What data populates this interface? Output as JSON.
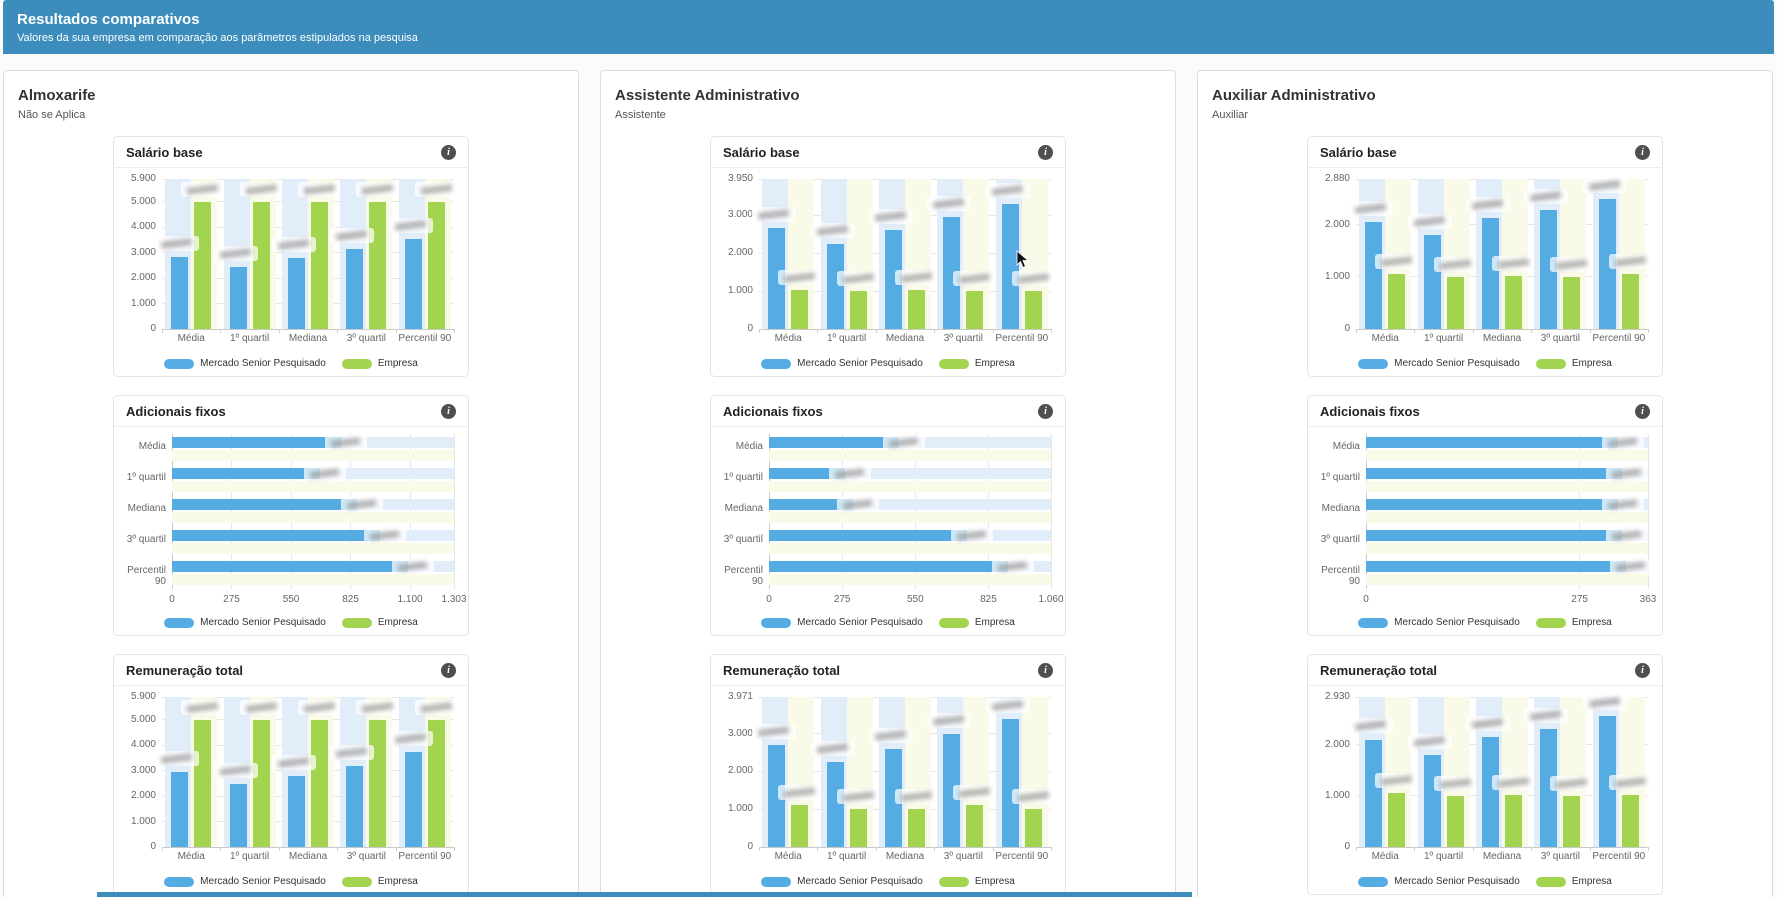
{
  "header": {
    "title": "Resultados comparativos",
    "subtitle": "Valores da sua empresa em comparação aos parâmetros estipulados na pesquisa"
  },
  "legend_labels": {
    "market": "Mercado Senior Pesquisado",
    "company": "Empresa"
  },
  "icons": {
    "info": "i",
    "cursor": "mouse-pointer"
  },
  "colors": {
    "header_bg": "#3c8dbc",
    "market": "#55ace3",
    "company": "#a2d450",
    "market_band": "#e1eefa",
    "company_band": "#f9fae7",
    "grid": "#e6e6e6",
    "tick_text": "#666666",
    "legend_text": "#333333"
  },
  "categories": [
    "Média",
    "1º quartil",
    "Mediana",
    "3º quartil",
    "Percentil 90"
  ],
  "panels": [
    {
      "title": "Almoxarife",
      "subtitle": "Não se Aplica",
      "chart_refs": [
        0,
        1,
        2
      ]
    },
    {
      "title": "Assistente Administrativo",
      "subtitle": "Assistente",
      "chart_refs": [
        3,
        4,
        5
      ]
    },
    {
      "title": "Auxiliar Administrativo",
      "subtitle": "Auxiliar",
      "chart_refs": [
        6,
        7,
        8
      ]
    }
  ],
  "note": "Numeric data labels on all bars are blurred/redacted in the screenshot; series values are estimated from bar sizes against the axis scales.",
  "chart_data": [
    {
      "panel": "Almoxarife",
      "title": "Salário base",
      "type": "bar",
      "orientation": "vertical",
      "categories": [
        "Média",
        "1º quartil",
        "Mediana",
        "3º quartil",
        "Percentil 90"
      ],
      "series": [
        {
          "name": "Mercado Senior Pesquisado",
          "values": [
            2830,
            2450,
            2780,
            3160,
            3550
          ]
        },
        {
          "name": "Empresa",
          "values": [
            5000,
            5000,
            5000,
            5000,
            5000
          ]
        }
      ],
      "ylim": [
        0,
        5900
      ],
      "yticks": [
        0,
        1000,
        2000,
        3000,
        4000,
        5000,
        5900
      ],
      "data_labels": "blurred"
    },
    {
      "panel": "Almoxarife",
      "title": "Adicionais fixos",
      "type": "bar",
      "orientation": "horizontal",
      "categories": [
        "Média",
        "1º quartil",
        "Mediana",
        "3º quartil",
        "Percentil 90"
      ],
      "series": [
        {
          "name": "Mercado Senior Pesquisado",
          "values": [
            780,
            685,
            855,
            960,
            1090
          ]
        },
        {
          "name": "Empresa",
          "values": [
            0,
            0,
            0,
            0,
            0
          ]
        }
      ],
      "xlim": [
        0,
        1303
      ],
      "xticks": [
        0,
        275,
        550,
        825,
        1100,
        1303
      ],
      "data_labels": "blurred"
    },
    {
      "panel": "Almoxarife",
      "title": "Remuneração total",
      "type": "bar",
      "orientation": "vertical",
      "categories": [
        "Média",
        "1º quartil",
        "Mediana",
        "3º quartil",
        "Percentil 90"
      ],
      "series": [
        {
          "name": "Mercado Senior Pesquisado",
          "values": [
            2950,
            2480,
            2780,
            3170,
            3750
          ]
        },
        {
          "name": "Empresa",
          "values": [
            5000,
            5000,
            5000,
            5000,
            5000
          ]
        }
      ],
      "ylim": [
        0,
        5900
      ],
      "yticks": [
        0,
        1000,
        2000,
        3000,
        4000,
        5000,
        5900
      ],
      "data_labels": "blurred"
    },
    {
      "panel": "Assistente Administrativo",
      "title": "Salário base",
      "type": "bar",
      "orientation": "vertical",
      "categories": [
        "Média",
        "1º quartil",
        "Mediana",
        "3º quartil",
        "Percentil 90"
      ],
      "series": [
        {
          "name": "Mercado Senior Pesquisado",
          "values": [
            2650,
            2250,
            2600,
            2950,
            3300
          ]
        },
        {
          "name": "Empresa",
          "values": [
            1030,
            1000,
            1030,
            1000,
            1000
          ]
        }
      ],
      "ylim": [
        0,
        3950
      ],
      "yticks": [
        0,
        1000,
        2000,
        3000,
        3950
      ],
      "data_labels": "blurred"
    },
    {
      "panel": "Assistente Administrativo",
      "title": "Adicionais fixos",
      "type": "bar",
      "orientation": "horizontal",
      "categories": [
        "Média",
        "1º quartil",
        "Mediana",
        "3º quartil",
        "Percentil 90"
      ],
      "series": [
        {
          "name": "Mercado Senior Pesquisado",
          "values": [
            490,
            285,
            315,
            745,
            900
          ]
        },
        {
          "name": "Empresa",
          "values": [
            0,
            0,
            0,
            0,
            0
          ]
        }
      ],
      "xlim": [
        0,
        1060
      ],
      "xticks": [
        0,
        275,
        550,
        825,
        1060
      ],
      "data_labels": "blurred"
    },
    {
      "panel": "Assistente Administrativo",
      "title": "Remuneração total",
      "type": "bar",
      "orientation": "vertical",
      "categories": [
        "Média",
        "1º quartil",
        "Mediana",
        "3º quartil",
        "Percentil 90"
      ],
      "series": [
        {
          "name": "Mercado Senior Pesquisado",
          "values": [
            2700,
            2250,
            2600,
            3000,
            3400
          ]
        },
        {
          "name": "Empresa",
          "values": [
            1100,
            1000,
            1000,
            1100,
            1000
          ]
        }
      ],
      "ylim": [
        0,
        3971
      ],
      "yticks": [
        0,
        1000,
        2000,
        3000,
        3971
      ],
      "data_labels": "blurred"
    },
    {
      "panel": "Auxiliar Administrativo",
      "title": "Salário base",
      "type": "bar",
      "orientation": "vertical",
      "categories": [
        "Média",
        "1º quartil",
        "Mediana",
        "3º quartil",
        "Percentil 90"
      ],
      "series": [
        {
          "name": "Mercado Senior Pesquisado",
          "values": [
            2050,
            1800,
            2130,
            2280,
            2500
          ]
        },
        {
          "name": "Empresa",
          "values": [
            1050,
            1000,
            1020,
            1000,
            1050
          ]
        }
      ],
      "ylim": [
        0,
        2880
      ],
      "yticks": [
        0,
        1000,
        2000,
        2880
      ],
      "data_labels": "blurred"
    },
    {
      "panel": "Auxiliar Administrativo",
      "title": "Adicionais fixos",
      "type": "bar",
      "orientation": "horizontal",
      "categories": [
        "Média",
        "1º quartil",
        "Mediana",
        "3º quartil",
        "Percentil 90"
      ],
      "series": [
        {
          "name": "Mercado Senior Pesquisado",
          "values": [
            325,
            330,
            325,
            330,
            335
          ]
        },
        {
          "name": "Empresa",
          "values": [
            0,
            0,
            0,
            0,
            0
          ]
        }
      ],
      "xlim": [
        0,
        363
      ],
      "xticks": [
        0,
        275,
        363
      ],
      "data_labels": "blurred"
    },
    {
      "panel": "Auxiliar Administrativo",
      "title": "Remuneração total",
      "type": "bar",
      "orientation": "vertical",
      "categories": [
        "Média",
        "1º quartil",
        "Mediana",
        "3º quartil",
        "Percentil 90"
      ],
      "series": [
        {
          "name": "Mercado Senior Pesquisado",
          "values": [
            2100,
            1800,
            2150,
            2300,
            2550
          ]
        },
        {
          "name": "Empresa",
          "values": [
            1050,
            1000,
            1020,
            1000,
            1020
          ]
        }
      ],
      "ylim": [
        0,
        2930
      ],
      "yticks": [
        0,
        1000,
        2000,
        2930
      ],
      "data_labels": "blurred"
    }
  ]
}
